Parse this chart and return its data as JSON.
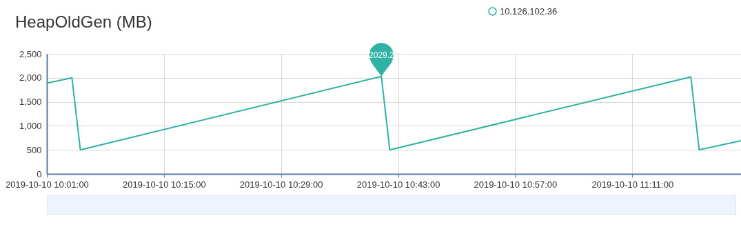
{
  "chart_data": {
    "type": "line",
    "title": "HeapOldGen (MB)",
    "x": [
      "2019-10-10T10:01",
      "2019-10-10T10:04",
      "2019-10-10T10:05",
      "2019-10-10T10:41",
      "2019-10-10T10:42",
      "2019-10-10T11:18",
      "2019-10-10T11:19",
      "2019-10-10T11:24"
    ],
    "series": [
      {
        "name": "10.126.102.36",
        "color": "#2fb2a3",
        "values": [
          1890,
          2000,
          500,
          2029.2,
          500,
          2020,
          500,
          690
        ]
      }
    ],
    "xlim": [
      "2019-10-10T10:01",
      "2019-10-10T11:24"
    ],
    "xticks": [
      {
        "value": "2019-10-10T10:01",
        "label": "2019-10-10 10:01:00"
      },
      {
        "value": "2019-10-10T10:15",
        "label": "2019-10-10 10:15:00"
      },
      {
        "value": "2019-10-10T10:29",
        "label": "2019-10-10 10:29:00"
      },
      {
        "value": "2019-10-10T10:43",
        "label": "2019-10-10 10:43:00"
      },
      {
        "value": "2019-10-10T10:57",
        "label": "2019-10-10 10:57:00"
      },
      {
        "value": "2019-10-10T11:11",
        "label": "2019-10-10 11:11:00"
      }
    ],
    "ylim": [
      0,
      2500
    ],
    "yticks": [
      {
        "value": 0,
        "label": "0"
      },
      {
        "value": 500,
        "label": "500"
      },
      {
        "value": 1000,
        "label": "1,000"
      },
      {
        "value": 1500,
        "label": "1,500"
      },
      {
        "value": 2000,
        "label": "2,000"
      },
      {
        "value": 2500,
        "label": "2,500"
      }
    ],
    "annotations": [
      {
        "text": "2029.2",
        "x": "2019-10-10T10:41",
        "y": 2029.2
      }
    ],
    "grid": true,
    "legend": "top",
    "marker": "none",
    "line_style": "solid"
  }
}
